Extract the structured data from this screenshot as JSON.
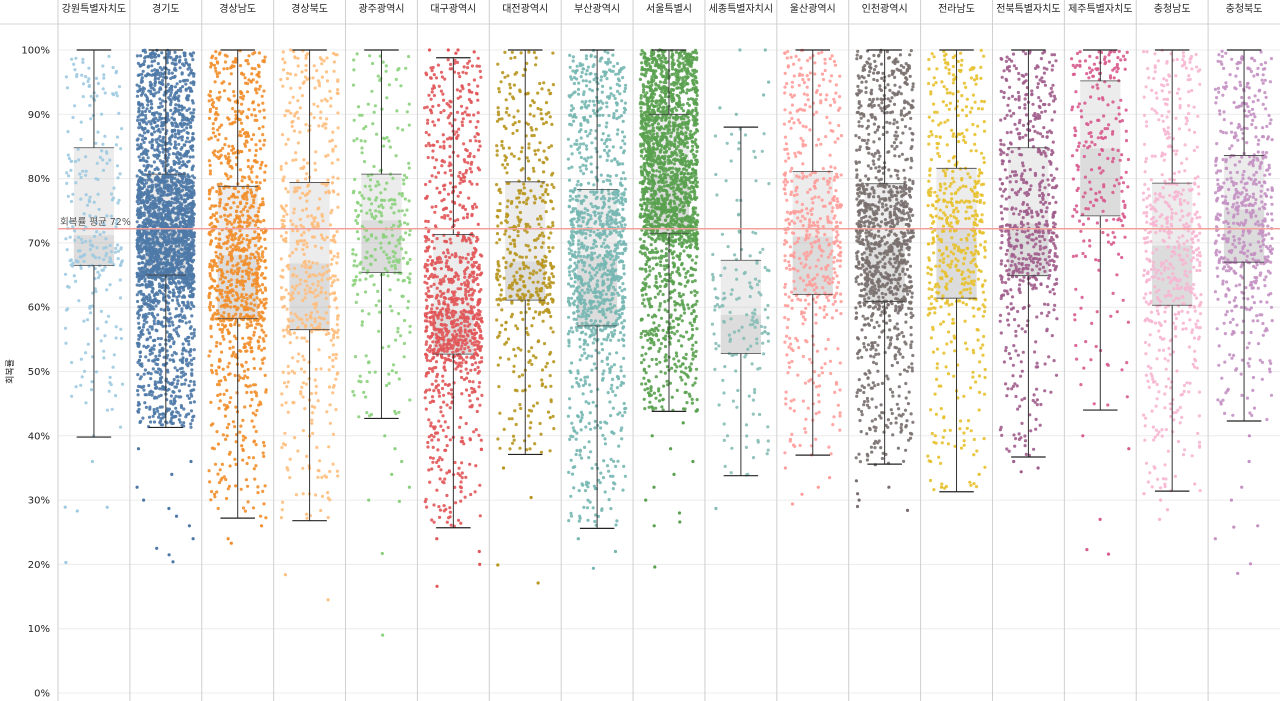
{
  "chart_data": {
    "type": "box-jitter",
    "title": "",
    "ylabel": "회복률",
    "ylim": [
      0,
      100
    ],
    "y_ticks": [
      {
        "value": 0,
        "label": "0%"
      },
      {
        "value": 10,
        "label": "10%"
      },
      {
        "value": 20,
        "label": "20%"
      },
      {
        "value": 30,
        "label": "30%"
      },
      {
        "value": 40,
        "label": "40%"
      },
      {
        "value": 50,
        "label": "50%"
      },
      {
        "value": 60,
        "label": "60%"
      },
      {
        "value": 70,
        "label": "70%"
      },
      {
        "value": 80,
        "label": "80%"
      },
      {
        "value": 90,
        "label": "90%"
      },
      {
        "value": 100,
        "label": "100%"
      }
    ],
    "reference_line": {
      "value": 72.2,
      "label": "회복률 평균 72%",
      "color": "#f4a09a"
    },
    "regions": [
      {
        "name": "강원특별자치도",
        "color": "#9ecae1",
        "whisker_low": 39.8,
        "q1": 66.5,
        "median": 71.2,
        "q3": 84.8,
        "whisker_high": 100,
        "density": 260,
        "outliers": [
          36,
          28.3,
          28.9,
          28.9,
          20.3
        ]
      },
      {
        "name": "경기도",
        "color": "#4e79a7",
        "whisker_low": 41.3,
        "q1": 65.0,
        "median": 72.4,
        "q3": 80.7,
        "whisker_high": 100,
        "density": 2600,
        "outliers": [
          38,
          36,
          34,
          32,
          30,
          28.7,
          27.5,
          26,
          24,
          22.5,
          21.5,
          20.4
        ]
      },
      {
        "name": "경상남도",
        "color": "#f28e2b",
        "whisker_low": 27.2,
        "q1": 58.2,
        "median": 68.1,
        "q3": 78.8,
        "whisker_high": 100,
        "density": 1050,
        "outliers": [
          26,
          24,
          23.3
        ]
      },
      {
        "name": "경상북도",
        "color": "#ffbe7d",
        "whisker_low": 26.8,
        "q1": 56.5,
        "median": 66.8,
        "q3": 79.4,
        "whisker_high": 100,
        "density": 540,
        "outliers": [
          18.4,
          14.5
        ]
      },
      {
        "name": "광주광역시",
        "color": "#8cd17d",
        "whisker_low": 42.7,
        "q1": 65.4,
        "median": 73.5,
        "q3": 80.7,
        "whisker_high": 100,
        "density": 300,
        "outliers": [
          40,
          38,
          36,
          34,
          32,
          30,
          29.8,
          21.7,
          9.0
        ]
      },
      {
        "name": "대구광역시",
        "color": "#e15759",
        "whisker_low": 25.7,
        "q1": 52.7,
        "median": 59.4,
        "q3": 71.3,
        "whisker_high": 98.8,
        "density": 1050,
        "outliers": [
          100,
          100,
          100,
          99.7,
          99.5,
          24,
          22,
          20,
          16.6
        ]
      },
      {
        "name": "대전광역시",
        "color": "#b8961e",
        "whisker_low": 37.1,
        "q1": 61.1,
        "median": 67.1,
        "q3": 79.5,
        "whisker_high": 100,
        "density": 520,
        "outliers": [
          35,
          30.4,
          19.9,
          17.1
        ]
      },
      {
        "name": "부산광역시",
        "color": "#76b7b2",
        "whisker_low": 25.6,
        "q1": 57.1,
        "median": 67.9,
        "q3": 78.3,
        "whisker_high": 100,
        "density": 1150,
        "outliers": [
          24,
          22,
          19.4
        ]
      },
      {
        "name": "서울특별시",
        "color": "#59a14f",
        "whisker_low": 43.8,
        "q1": 71.5,
        "median": 80.3,
        "q3": 90.0,
        "whisker_high": 100,
        "density": 2000,
        "outliers": [
          42,
          40,
          38,
          36,
          34,
          32,
          30,
          28,
          26.6,
          26.0,
          19.6
        ]
      },
      {
        "name": "세종특별자치시",
        "color": "#86bcb6",
        "whisker_low": 33.8,
        "q1": 52.8,
        "median": 58.8,
        "q3": 67.3,
        "whisker_high": 88.0,
        "density": 160,
        "outliers": [
          100,
          100,
          95,
          93,
          91,
          90,
          28.7
        ]
      },
      {
        "name": "울산광역시",
        "color": "#ff9d9a",
        "whisker_low": 37.0,
        "q1": 62.0,
        "median": 71.0,
        "q3": 81.1,
        "whisker_high": 100,
        "density": 520,
        "outliers": [
          35,
          33.5,
          32,
          30.9,
          29.4
        ]
      },
      {
        "name": "인천광역시",
        "color": "#79706e",
        "whisker_low": 35.6,
        "q1": 60.9,
        "median": 69.9,
        "q3": 79.2,
        "whisker_high": 100,
        "density": 1150,
        "outliers": [
          35.5,
          33,
          32,
          31,
          30,
          29,
          28.4
        ]
      },
      {
        "name": "전라남도",
        "color": "#e8c12e",
        "whisker_low": 31.3,
        "q1": 61.4,
        "median": 72.3,
        "q3": 81.6,
        "whisker_high": 100,
        "density": 560,
        "outliers": [
          36,
          34,
          32
        ]
      },
      {
        "name": "전북특별자치도",
        "color": "#a05d8c",
        "whisker_low": 36.7,
        "q1": 64.9,
        "median": 73.0,
        "q3": 84.8,
        "whisker_high": 100,
        "density": 620,
        "outliers": [
          36,
          35,
          34.4
        ]
      },
      {
        "name": "제주특별자치도",
        "color": "#d85b8e",
        "whisker_low": 44.0,
        "q1": 74.2,
        "median": 84.7,
        "q3": 95.2,
        "whisker_high": 100,
        "density": 240,
        "outliers": [
          40,
          38,
          27,
          22.3,
          21.6
        ]
      },
      {
        "name": "충청남도",
        "color": "#f7b6d2",
        "whisker_low": 31.4,
        "q1": 60.3,
        "median": 69.6,
        "q3": 79.3,
        "whisker_high": 100,
        "density": 560,
        "outliers": [
          31,
          30,
          28.5,
          27
        ]
      },
      {
        "name": "충청북도",
        "color": "#c491c3",
        "whisker_low": 42.3,
        "q1": 67.0,
        "median": 75.2,
        "q3": 83.6,
        "whisker_high": 100,
        "density": 580,
        "outliers": [
          40,
          36,
          32,
          30,
          26,
          25.8,
          24.0,
          20.1,
          18.6
        ]
      }
    ]
  }
}
